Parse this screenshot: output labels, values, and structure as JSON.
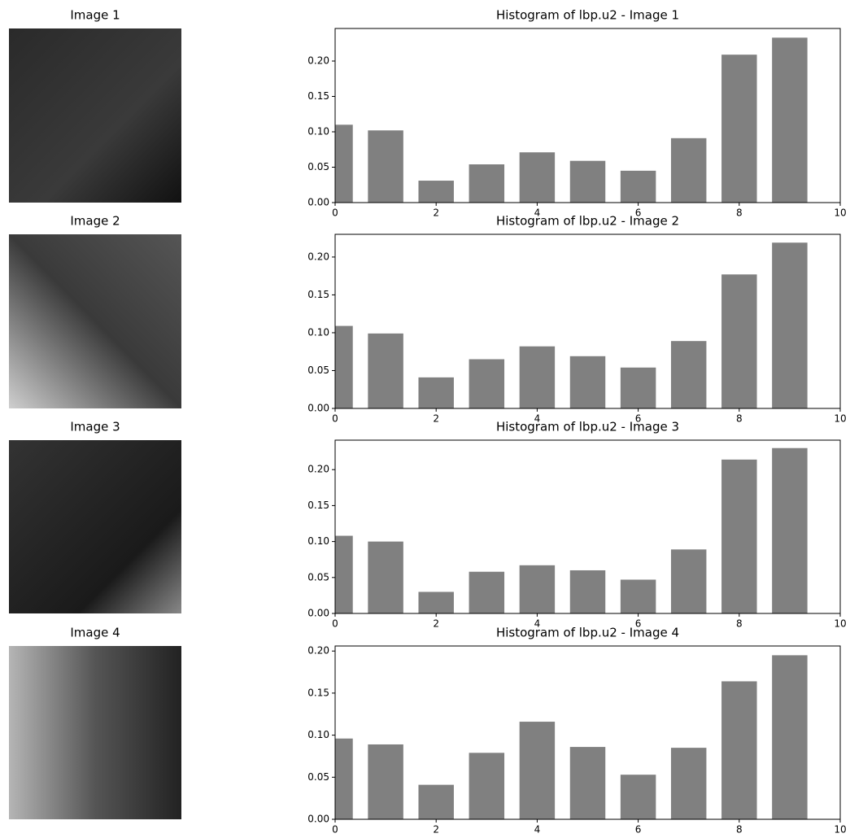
{
  "images": [
    {
      "title": "Image 1"
    },
    {
      "title": "Image 2"
    },
    {
      "title": "Image 3"
    },
    {
      "title": "Image 4"
    }
  ],
  "chart_data": [
    {
      "type": "bar",
      "title": "Histogram of lbp.u2 - Image 1",
      "color": "#808080",
      "x": [
        0,
        1,
        2,
        3,
        4,
        5,
        6,
        7,
        8,
        9
      ],
      "values": [
        0.11,
        0.102,
        0.031,
        0.054,
        0.071,
        0.059,
        0.045,
        0.091,
        0.209,
        0.233
      ],
      "xlim": [
        0,
        10
      ],
      "xticks": [
        0,
        2,
        4,
        6,
        8,
        10
      ],
      "ylim": [
        0,
        0.246
      ],
      "yticks": [
        {
          "value": 0,
          "label": "0.00"
        },
        0.05,
        {
          "value": 0.1,
          "label": "0.10"
        },
        0.15,
        {
          "value": 0.2,
          "label": "0.20"
        }
      ]
    },
    {
      "type": "bar",
      "title": "Histogram of lbp.u2 - Image 2",
      "color": "#808080",
      "x": [
        0,
        1,
        2,
        3,
        4,
        5,
        6,
        7,
        8,
        9
      ],
      "values": [
        0.109,
        0.099,
        0.041,
        0.065,
        0.082,
        0.069,
        0.054,
        0.089,
        0.177,
        0.219
      ],
      "xlim": [
        0,
        10
      ],
      "xticks": [
        0,
        2,
        4,
        6,
        8,
        10
      ],
      "ylim": [
        0,
        0.23
      ],
      "yticks": [
        {
          "value": 0,
          "label": "0.00"
        },
        0.05,
        {
          "value": 0.1,
          "label": "0.10"
        },
        0.15,
        {
          "value": 0.2,
          "label": "0.20"
        }
      ]
    },
    {
      "type": "bar",
      "title": "Histogram of lbp.u2 - Image 3",
      "color": "#808080",
      "x": [
        0,
        1,
        2,
        3,
        4,
        5,
        6,
        7,
        8,
        9
      ],
      "values": [
        0.108,
        0.1,
        0.03,
        0.058,
        0.067,
        0.06,
        0.047,
        0.089,
        0.214,
        0.23
      ],
      "xlim": [
        0,
        10
      ],
      "xticks": [
        0,
        2,
        4,
        6,
        8,
        10
      ],
      "ylim": [
        0,
        0.241
      ],
      "yticks": [
        {
          "value": 0,
          "label": "0.00"
        },
        0.05,
        {
          "value": 0.1,
          "label": "0.10"
        },
        0.15,
        {
          "value": 0.2,
          "label": "0.20"
        }
      ]
    },
    {
      "type": "bar",
      "title": "Histogram of lbp.u2 - Image 4",
      "color": "#808080",
      "x": [
        0,
        1,
        2,
        3,
        4,
        5,
        6,
        7,
        8,
        9
      ],
      "values": [
        0.096,
        0.089,
        0.041,
        0.079,
        0.116,
        0.086,
        0.053,
        0.085,
        0.164,
        0.195
      ],
      "xlim": [
        0,
        10
      ],
      "xticks": [
        0,
        2,
        4,
        6,
        8,
        10
      ],
      "ylim": [
        0,
        0.206
      ],
      "yticks": [
        {
          "value": 0,
          "label": "0.00"
        },
        0.05,
        {
          "value": 0.1,
          "label": "0.10"
        },
        0.15,
        {
          "value": 0.2,
          "label": "0.20"
        }
      ]
    }
  ]
}
